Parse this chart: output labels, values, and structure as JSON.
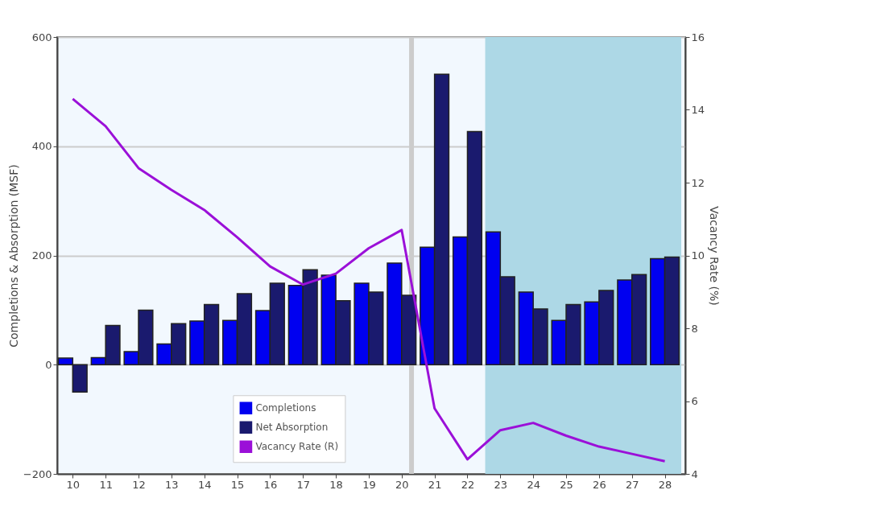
{
  "chart_data": {
    "type": "bar",
    "ylabel": "Completions & Absorption (MSF)",
    "y2label": "Vacancy Rate (%)",
    "x": [
      10,
      11,
      12,
      13,
      14,
      15,
      16,
      17,
      18,
      19,
      20,
      21,
      22,
      23,
      24,
      25,
      26,
      27,
      28
    ],
    "xlim": [
      9.65,
      28.5
    ],
    "xticks": [
      10,
      11,
      12,
      13,
      14,
      15,
      16,
      17,
      18,
      19,
      20,
      21,
      22,
      23,
      24,
      25,
      26,
      27,
      28
    ],
    "ylim": [
      -200,
      600
    ],
    "yticks": [
      -200,
      0,
      200,
      400,
      600
    ],
    "y2lim": [
      4,
      16
    ],
    "y2ticks": [
      4,
      6,
      8,
      10,
      12,
      14,
      16
    ],
    "series": [
      {
        "name": "Completions",
        "color": "#0000f0",
        "values": [
          12,
          13,
          24,
          38,
          80,
          81,
          99,
          145,
          164,
          149,
          186,
          215,
          234,
          243,
          133,
          81,
          115,
          155,
          194
        ]
      },
      {
        "name": "Net Absorption",
        "color": "#1a1a6e",
        "values": [
          -50,
          72,
          100,
          75,
          110,
          130,
          149,
          174,
          117,
          133,
          127,
          532,
          427,
          161,
          102,
          110,
          136,
          165,
          197
        ]
      },
      {
        "name": "Vacancy Rate (R)",
        "type": "line",
        "axis": "y2",
        "color": "#9b10d8",
        "values": [
          14.3,
          13.55,
          12.4,
          11.8,
          11.25,
          10.5,
          9.7,
          9.2,
          9.5,
          10.2,
          10.7,
          5.8,
          4.4,
          5.2,
          5.4,
          5.05,
          4.75,
          4.55,
          4.35
        ]
      }
    ],
    "bands": [
      {
        "axis": "x",
        "from": 22.54,
        "to": 28.5,
        "color": "#add8e6"
      }
    ],
    "ref_lines": [
      {
        "axis": "x",
        "value": 20.3,
        "color": "#cccccc"
      }
    ],
    "grid": "y",
    "legend": "bottom left"
  }
}
